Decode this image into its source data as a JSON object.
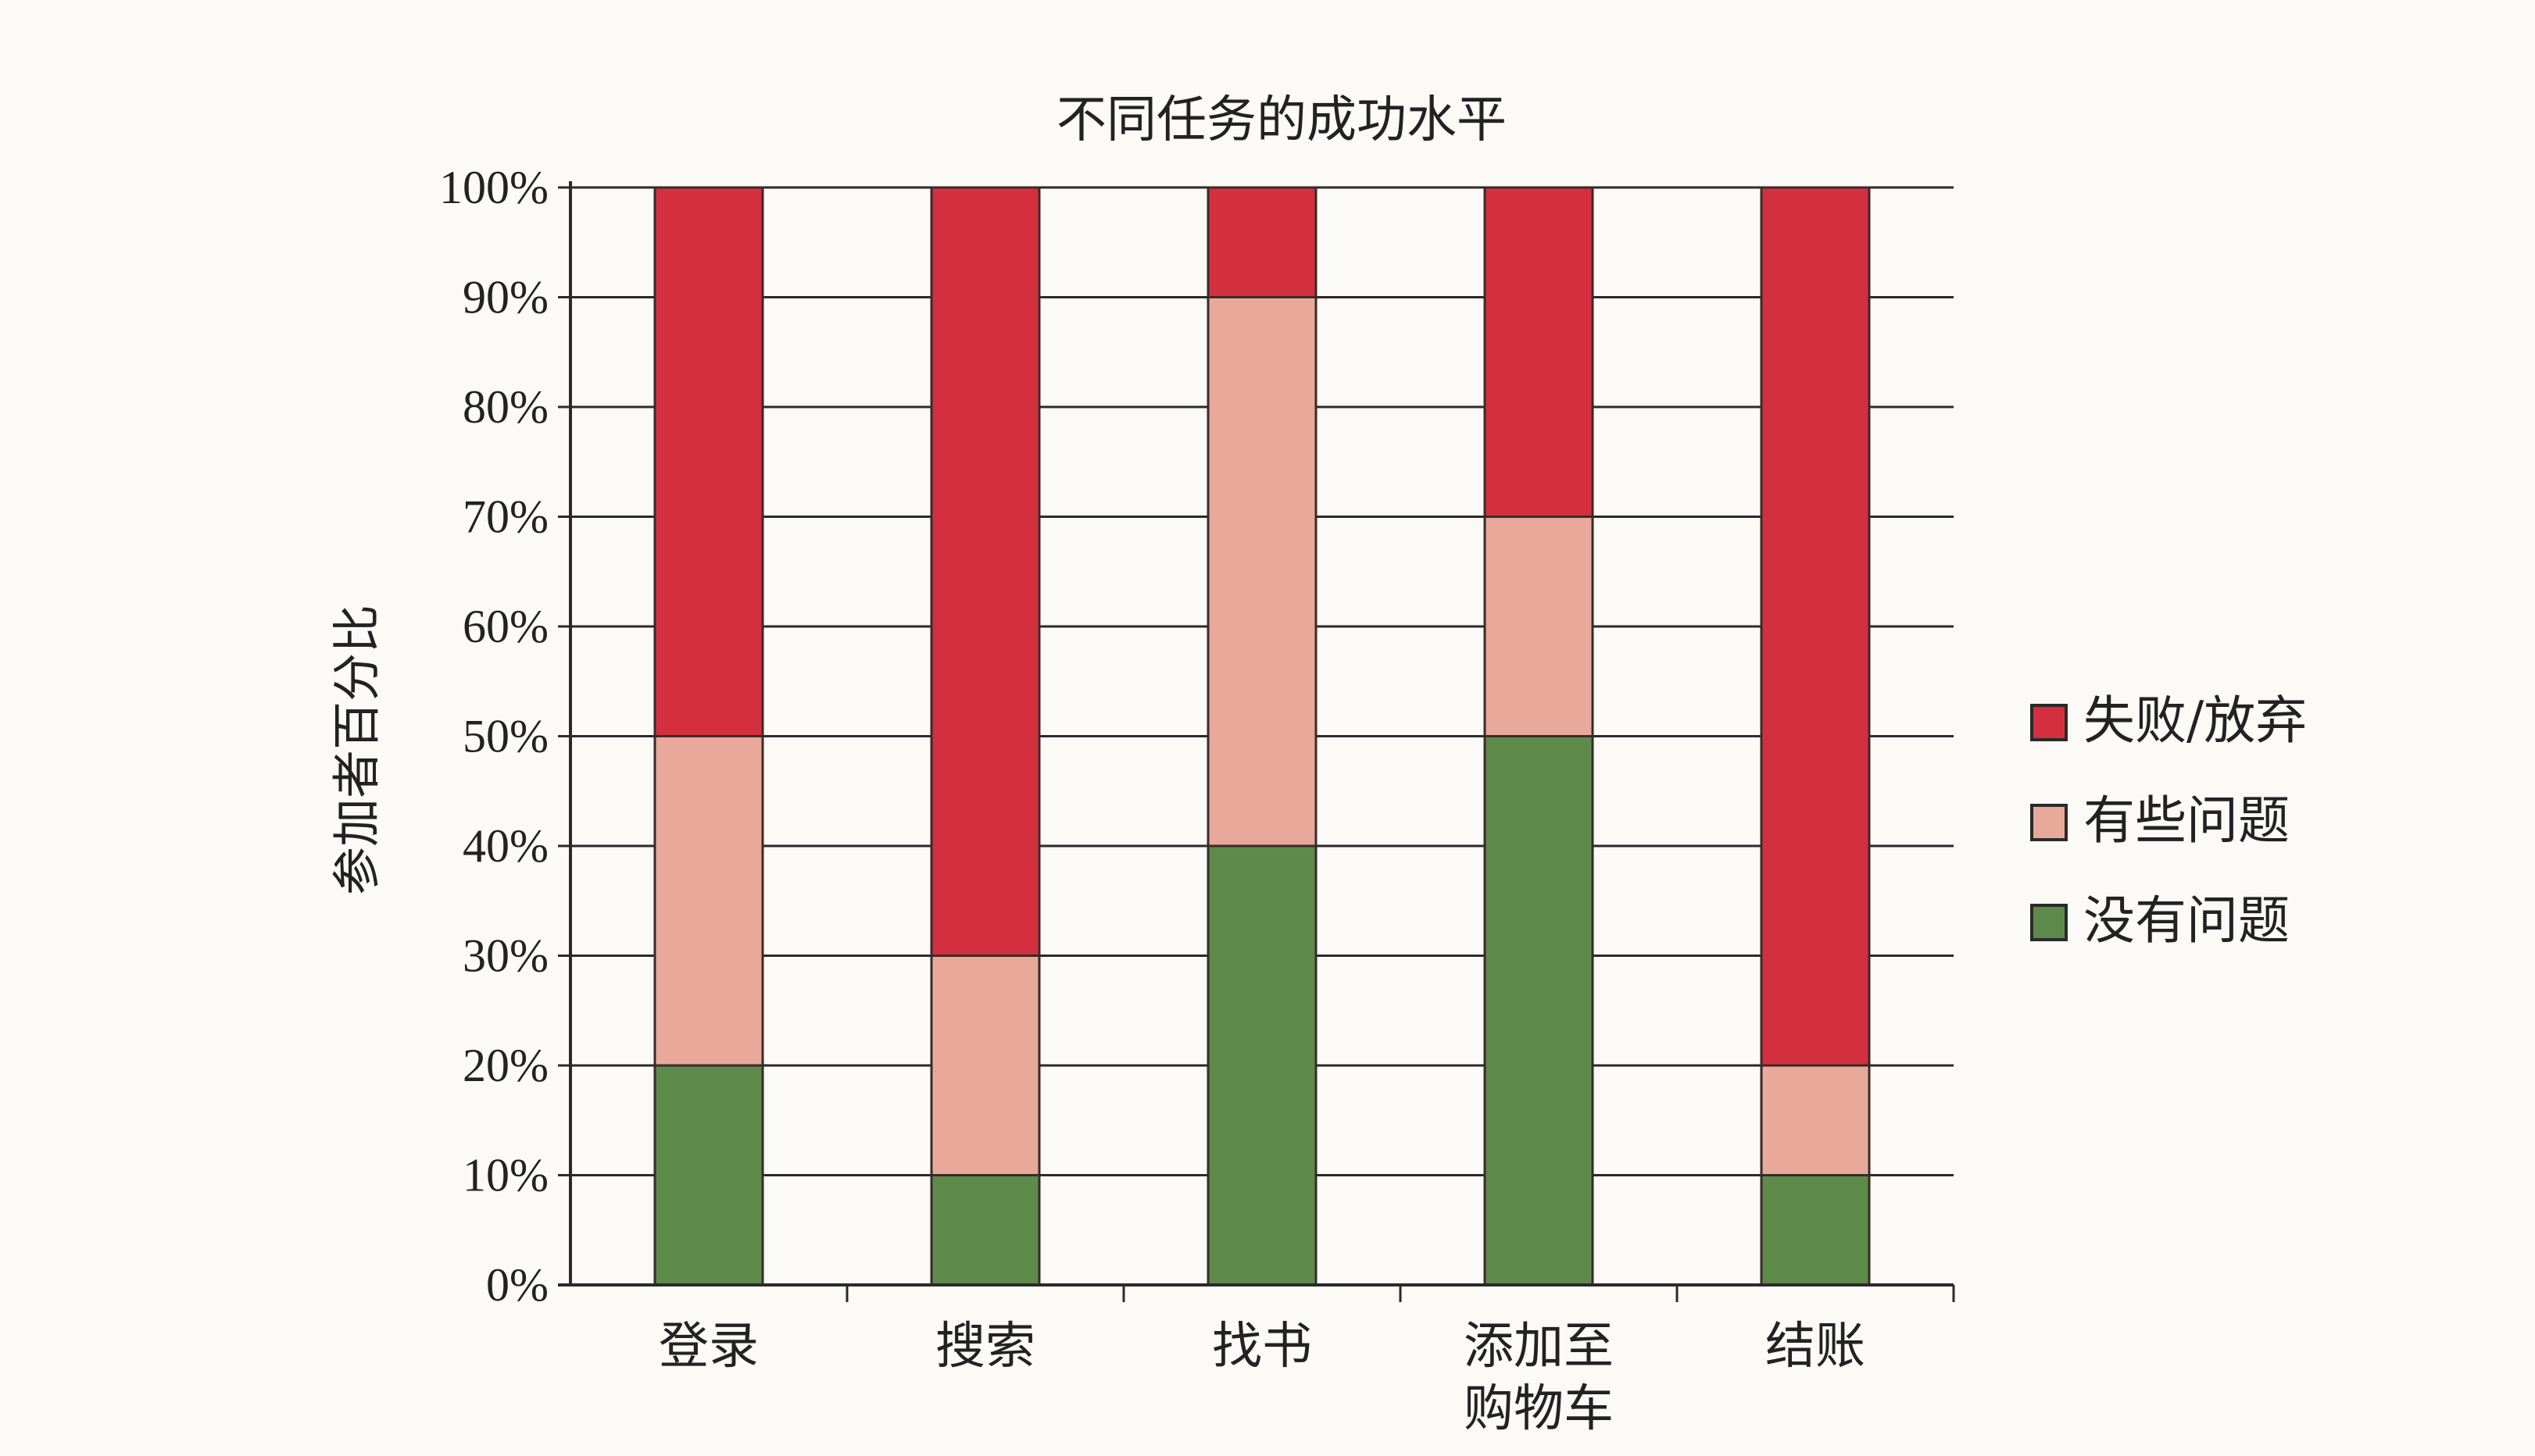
{
  "chart_data": {
    "type": "bar",
    "stacked": true,
    "title": "不同任务的成功水平",
    "ylabel": "参加者百分比",
    "xlabel": "",
    "categories": [
      [
        "登录"
      ],
      [
        "搜索"
      ],
      [
        "找书"
      ],
      [
        "添加至",
        "购物车"
      ],
      [
        "结账"
      ]
    ],
    "series": [
      {
        "name": "没有问题",
        "color": "#5e8a4a",
        "values": [
          20,
          10,
          40,
          50,
          10
        ]
      },
      {
        "name": "有些问题",
        "color": "#e8a99a",
        "values": [
          30,
          20,
          50,
          20,
          10
        ]
      },
      {
        "name": "失败/放弃",
        "color": "#d42f3e",
        "values": [
          50,
          70,
          10,
          30,
          80
        ]
      }
    ],
    "legend_order": [
      "失败/放弃",
      "有些问题",
      "没有问题"
    ],
    "legend_position": "right",
    "ylim": [
      0,
      100
    ],
    "yticks": [
      "0%",
      "10%",
      "20%",
      "30%",
      "40%",
      "50%",
      "60%",
      "70%",
      "80%",
      "90%",
      "100%"
    ],
    "grid": true
  }
}
